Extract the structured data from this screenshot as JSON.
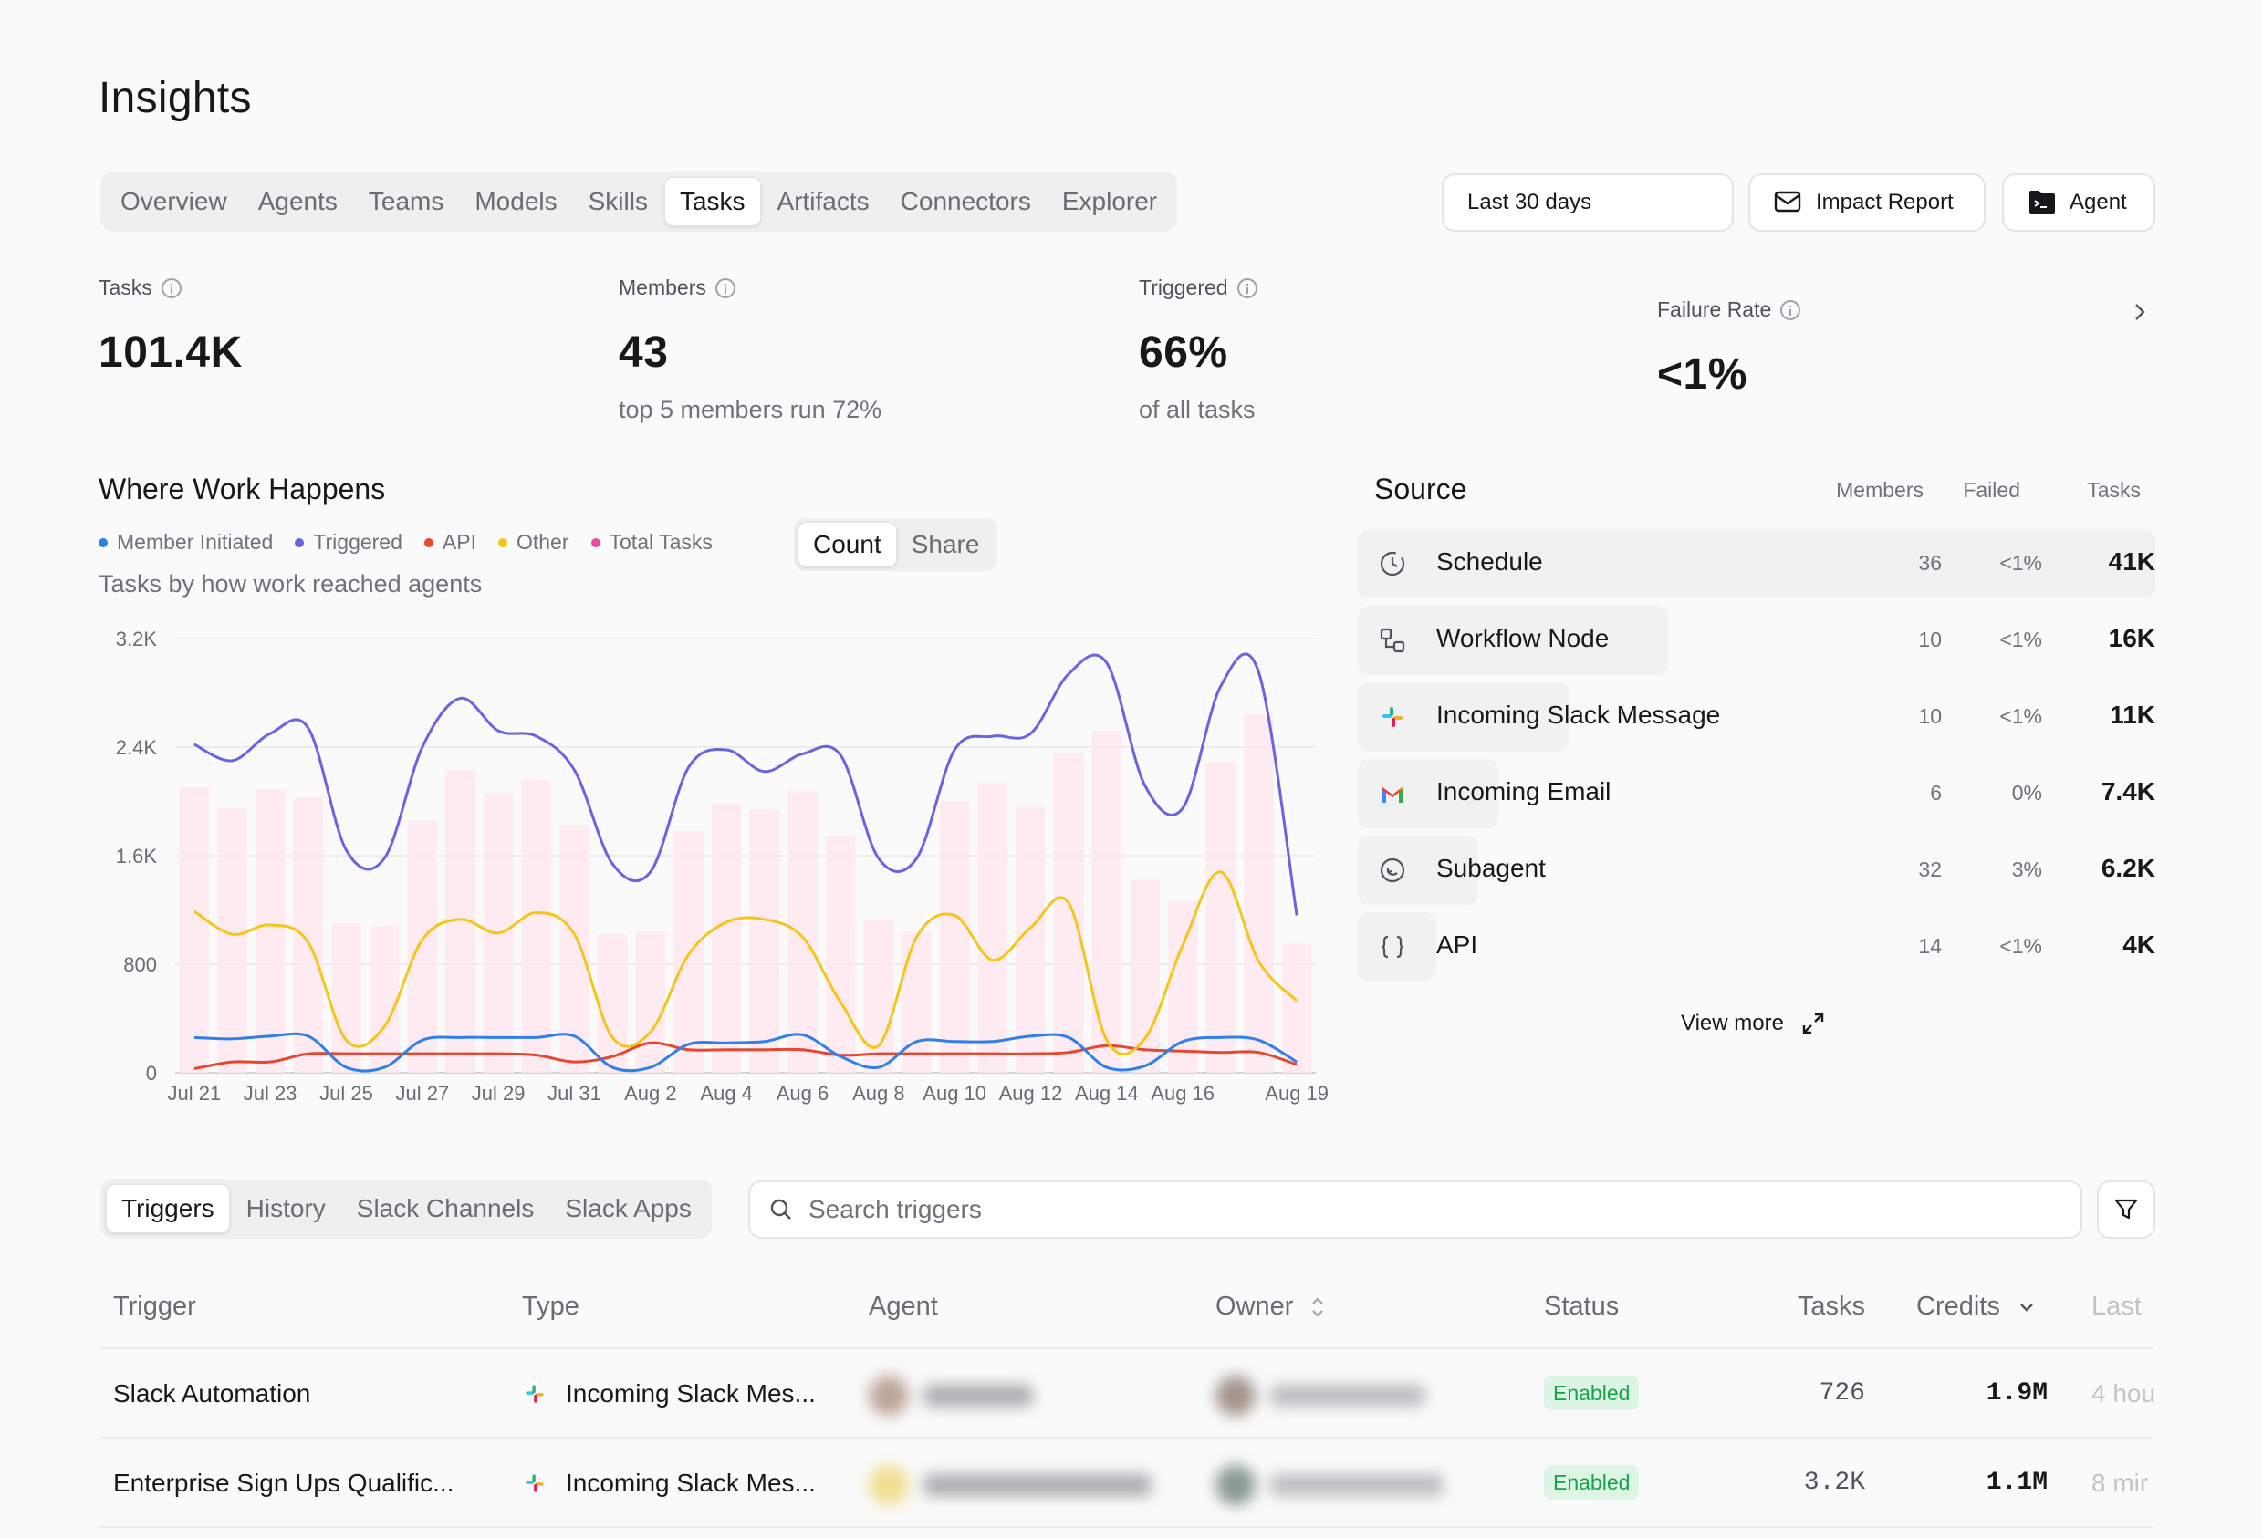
{
  "page_title": "Insights",
  "nav_tabs": [
    "Overview",
    "Agents",
    "Teams",
    "Models",
    "Skills",
    "Tasks",
    "Artifacts",
    "Connectors",
    "Explorer"
  ],
  "active_tab": "Tasks",
  "date_range": "Last 30 days",
  "impact_report_label": "Impact Report",
  "agent_label": "Agent",
  "kpis": {
    "tasks": {
      "label": "Tasks",
      "value": "101.4K"
    },
    "members": {
      "label": "Members",
      "value": "43",
      "sub": "top 5 members run 72%"
    },
    "triggered": {
      "label": "Triggered",
      "value": "66%",
      "sub": "of all tasks"
    },
    "failure": {
      "label": "Failure Rate",
      "value": "<1%"
    }
  },
  "work": {
    "title": "Where Work Happens",
    "subtitle": "Tasks by how work reached agents",
    "count_label": "Count",
    "share_label": "Share",
    "legend": [
      {
        "label": "Member Initiated",
        "color": "#2f80ed"
      },
      {
        "label": "Triggered",
        "color": "#6c63e0"
      },
      {
        "label": "API",
        "color": "#e8462f"
      },
      {
        "label": "Other",
        "color": "#f5c518"
      },
      {
        "label": "Total Tasks",
        "color": "#ec4899"
      }
    ]
  },
  "chart_data": {
    "type": "line",
    "x": [
      "Jul 21",
      "Jul 22",
      "Jul 23",
      "Jul 24",
      "Jul 25",
      "Jul 26",
      "Jul 27",
      "Jul 28",
      "Jul 29",
      "Jul 30",
      "Jul 31",
      "Aug 1",
      "Aug 2",
      "Aug 3",
      "Aug 4",
      "Aug 5",
      "Aug 6",
      "Aug 7",
      "Aug 8",
      "Aug 9",
      "Aug 10",
      "Aug 11",
      "Aug 12",
      "Aug 13",
      "Aug 14",
      "Aug 15",
      "Aug 16",
      "Aug 17",
      "Aug 18",
      "Aug 19"
    ],
    "tick_labels": [
      "Jul 21",
      "Jul 23",
      "Jul 25",
      "Jul 27",
      "Jul 29",
      "Jul 31",
      "Aug 2",
      "Aug 4",
      "Aug 6",
      "Aug 8",
      "Aug 10",
      "Aug 12",
      "Aug 14",
      "Aug 16",
      "Aug 19"
    ],
    "yticks": [
      "0",
      "800",
      "1.6K",
      "2.4K",
      "3.2K"
    ],
    "ylim": [
      0,
      3200
    ],
    "series": [
      {
        "name": "Triggered",
        "color": "#6c63e0",
        "type": "line",
        "values": [
          2420,
          2300,
          2500,
          2540,
          1640,
          1580,
          2400,
          2760,
          2520,
          2480,
          2230,
          1540,
          1480,
          2250,
          2380,
          2220,
          2350,
          2340,
          1580,
          1580,
          2380,
          2480,
          2500,
          2940,
          3020,
          2120,
          1950,
          2850,
          2950,
          1160
        ]
      },
      {
        "name": "Other",
        "color": "#f5c518",
        "type": "line",
        "values": [
          1190,
          1020,
          1090,
          960,
          240,
          340,
          980,
          1130,
          1030,
          1180,
          1020,
          260,
          300,
          870,
          1110,
          1130,
          1000,
          520,
          200,
          1000,
          1160,
          830,
          1070,
          1250,
          240,
          250,
          940,
          1480,
          820,
          530
        ]
      },
      {
        "name": "Member Initiated",
        "color": "#2f80ed",
        "type": "line",
        "values": [
          260,
          250,
          270,
          270,
          40,
          40,
          240,
          260,
          260,
          260,
          270,
          40,
          40,
          210,
          220,
          230,
          280,
          120,
          40,
          230,
          230,
          230,
          270,
          260,
          40,
          50,
          230,
          260,
          240,
          80
        ]
      },
      {
        "name": "API",
        "color": "#e8462f",
        "type": "line",
        "values": [
          30,
          80,
          80,
          140,
          140,
          140,
          140,
          140,
          140,
          130,
          80,
          120,
          220,
          170,
          170,
          170,
          170,
          130,
          140,
          140,
          140,
          140,
          140,
          150,
          200,
          170,
          160,
          150,
          150,
          60
        ]
      },
      {
        "name": "Total Tasks",
        "color": "#ec4899",
        "type": "bar",
        "values": [
          2100,
          1950,
          2090,
          2030,
          1100,
          1080,
          1860,
          2230,
          2060,
          2160,
          1830,
          1020,
          1040,
          1780,
          1990,
          1940,
          2080,
          1750,
          1130,
          1040,
          2000,
          2140,
          1960,
          2360,
          2520,
          1420,
          1260,
          2290,
          2640,
          950
        ]
      }
    ]
  },
  "source": {
    "title": "Source",
    "headers": {
      "members": "Members",
      "failed": "Failed",
      "tasks": "Tasks"
    },
    "rows": [
      {
        "icon": "clock-icon",
        "name": "Schedule",
        "members": "36",
        "failed": "<1%",
        "tasks": "41K"
      },
      {
        "icon": "workflow-icon",
        "name": "Workflow Node",
        "members": "10",
        "failed": "<1%",
        "tasks": "16K"
      },
      {
        "icon": "slack-icon",
        "name": "Incoming Slack Message",
        "members": "10",
        "failed": "<1%",
        "tasks": "11K"
      },
      {
        "icon": "gmail-icon",
        "name": "Incoming Email",
        "members": "6",
        "failed": "0%",
        "tasks": "7.4K"
      },
      {
        "icon": "subagent-icon",
        "name": "Subagent",
        "members": "32",
        "failed": "3%",
        "tasks": "6.2K"
      },
      {
        "icon": "braces-icon",
        "name": "API",
        "members": "14",
        "failed": "<1%",
        "tasks": "4K"
      }
    ],
    "view_more": "View more"
  },
  "bottom_tabs": [
    "Triggers",
    "History",
    "Slack Channels",
    "Slack Apps"
  ],
  "bottom_active": "Triggers",
  "search_placeholder": "Search triggers",
  "table": {
    "headers": {
      "trigger": "Trigger",
      "type": "Type",
      "agent": "Agent",
      "owner": "Owner",
      "status": "Status",
      "tasks": "Tasks",
      "credits": "Credits",
      "last": "Last"
    },
    "rows": [
      {
        "trigger": "Slack Automation",
        "type": "Incoming Slack Mes...",
        "status": "Enabled",
        "tasks": "726",
        "credits": "1.9M",
        "last": "4 hou"
      },
      {
        "trigger": "Enterprise Sign Ups Qualific...",
        "type": "Incoming Slack Mes...",
        "status": "Enabled",
        "tasks": "3.2K",
        "credits": "1.1M",
        "last": "8 mir"
      }
    ]
  }
}
